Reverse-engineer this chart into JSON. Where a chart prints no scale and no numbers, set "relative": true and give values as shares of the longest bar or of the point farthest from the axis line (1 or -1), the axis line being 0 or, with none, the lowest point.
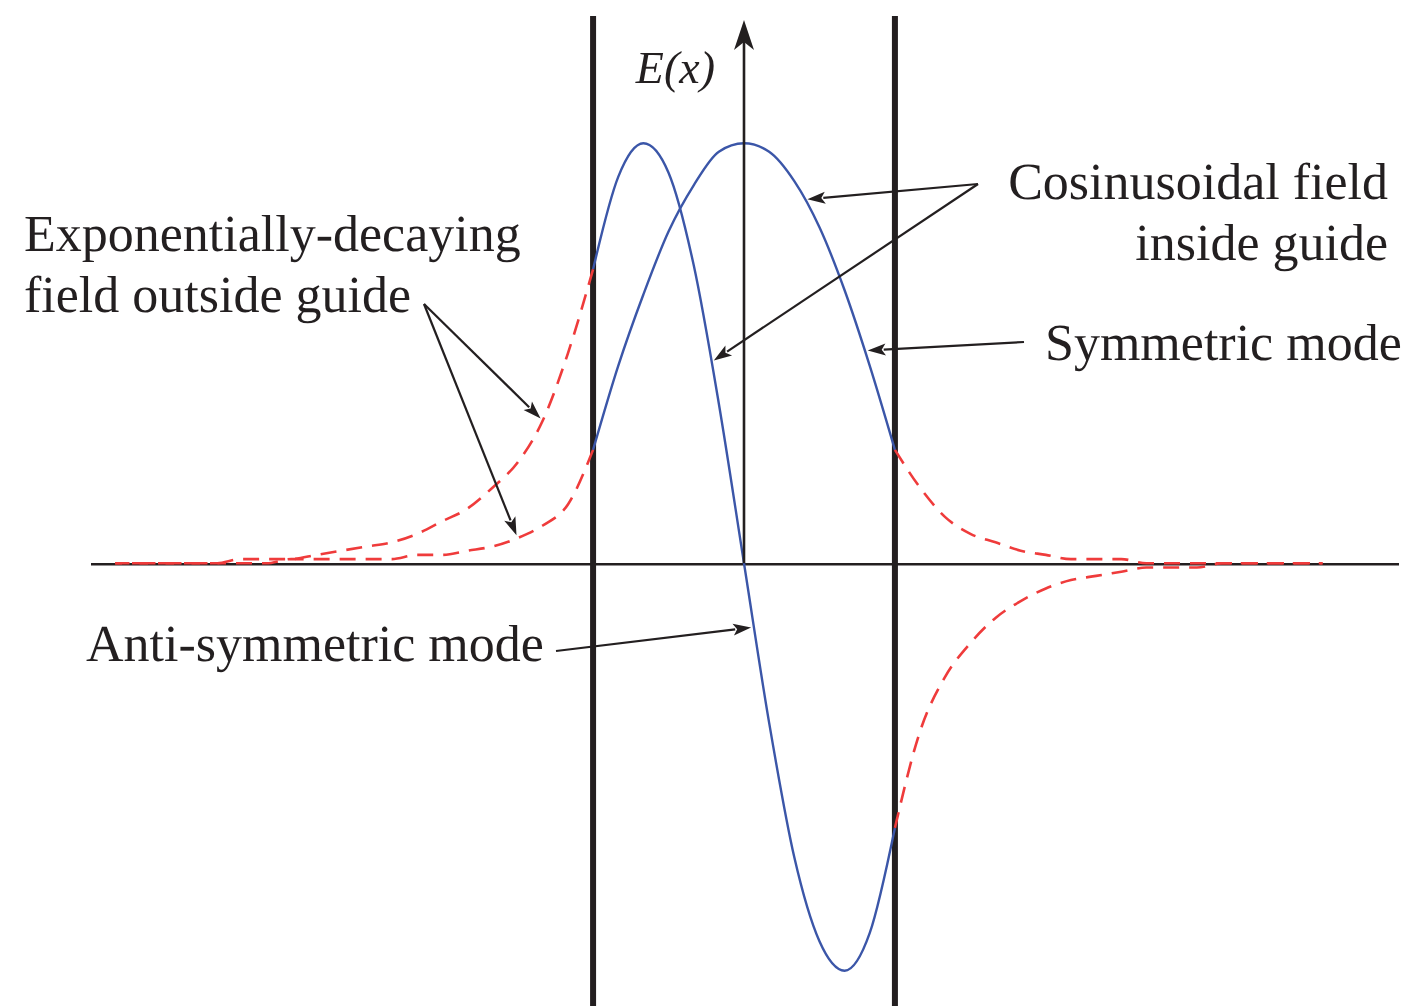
{
  "chart_data": {
    "type": "line",
    "relative": true,
    "ylabel": "E(x)",
    "categories": [
      null,
      null,
      null,
      null,
      null,
      null,
      null,
      null,
      null,
      null,
      null,
      null,
      null,
      null,
      null,
      null,
      null,
      null,
      null,
      null,
      null,
      null,
      null,
      null,
      null,
      null,
      null,
      null,
      null,
      null,
      null,
      null,
      null,
      null,
      null,
      null,
      null,
      null,
      null,
      null,
      null,
      null,
      null,
      null,
      null,
      null,
      null,
      null,
      null,
      null,
      null
    ],
    "series": [
      {
        "name": "Symmetric mode",
        "color": "#3b56a8",
        "values": [
          null,
          null,
          null,
          null,
          null,
          null,
          null,
          null,
          null,
          null,
          null,
          null,
          null,
          null,
          null,
          null,
          null,
          null,
          null,
          0.27,
          0.47,
          0.64,
          0.79,
          0.9,
          0.98,
          1,
          0.98,
          0.91,
          0.8,
          0.65,
          0.47,
          0.27,
          null,
          null,
          null,
          null,
          null,
          null,
          null,
          null,
          null,
          null,
          null,
          null,
          null,
          null,
          null,
          null,
          null,
          null,
          null
        ]
      },
      {
        "color": "#ef3b3b",
        "line_style": "dashed",
        "values": [
          0,
          0,
          0,
          0,
          0,
          0,
          0,
          0.01,
          0.01,
          0.01,
          0.01,
          0.01,
          0.02,
          0.02,
          0.03,
          0.04,
          0.06,
          0.09,
          0.14,
          0.27,
          null,
          null,
          null,
          null,
          null,
          null,
          null,
          null,
          null,
          null,
          null,
          null,
          null,
          null,
          null,
          null,
          null,
          null,
          null,
          null,
          null,
          null,
          null,
          null,
          null,
          null,
          null,
          null,
          null,
          null,
          null
        ]
      },
      {
        "color": "#ef3b3b",
        "line_style": "dashed",
        "values": [
          null,
          null,
          null,
          null,
          null,
          null,
          null,
          null,
          null,
          null,
          null,
          null,
          null,
          null,
          null,
          null,
          null,
          null,
          null,
          null,
          null,
          null,
          null,
          null,
          null,
          null,
          null,
          null,
          null,
          null,
          null,
          0.27,
          0.18,
          0.11,
          0.07,
          0.05,
          0.03,
          0.02,
          0.01,
          0.01,
          0.01,
          0,
          0,
          0,
          0,
          0,
          0,
          0,
          0,
          null,
          null
        ]
      },
      {
        "name": "Anti-symmetric mode",
        "color": "#3b56a8",
        "values": [
          null,
          null,
          null,
          null,
          null,
          null,
          null,
          null,
          null,
          null,
          null,
          null,
          null,
          null,
          null,
          null,
          null,
          null,
          null,
          0.7,
          0.92,
          1,
          0.93,
          0.71,
          0.38,
          0,
          -0.38,
          -0.7,
          -0.9,
          -0.97,
          -0.88,
          -0.63,
          null,
          null,
          null,
          null,
          null,
          null,
          null,
          null,
          null,
          null,
          null,
          null,
          null,
          null,
          null,
          null,
          null,
          null,
          null
        ]
      },
      {
        "color": "#ef3b3b",
        "line_style": "dashed",
        "values": [
          0,
          0,
          0,
          0,
          0,
          0.01,
          0.01,
          0.01,
          0.02,
          0.03,
          0.04,
          0.05,
          0.07,
          0.1,
          0.13,
          0.18,
          0.24,
          0.34,
          0.5,
          0.7,
          null,
          null,
          null,
          null,
          null,
          null,
          null,
          null,
          null,
          null,
          null,
          null,
          null,
          null,
          null,
          null,
          null,
          null,
          null,
          null,
          null,
          null,
          null,
          null,
          null,
          null,
          null,
          null,
          null,
          null,
          null
        ]
      },
      {
        "color": "#ef3b3b",
        "line_style": "dashed",
        "values": [
          null,
          null,
          null,
          null,
          null,
          null,
          null,
          null,
          null,
          null,
          null,
          null,
          null,
          null,
          null,
          null,
          null,
          null,
          null,
          null,
          null,
          null,
          null,
          null,
          null,
          null,
          null,
          null,
          null,
          null,
          null,
          -0.63,
          -0.4,
          -0.27,
          -0.19,
          -0.13,
          -0.09,
          -0.06,
          -0.04,
          -0.03,
          -0.02,
          -0.01,
          -0.01,
          -0.01,
          0,
          0,
          0,
          0,
          0,
          null,
          null
        ]
      }
    ],
    "annotations": [
      "Exponentially-decaying field outside guide",
      "Cosinusoidal field inside guide"
    ]
  }
}
